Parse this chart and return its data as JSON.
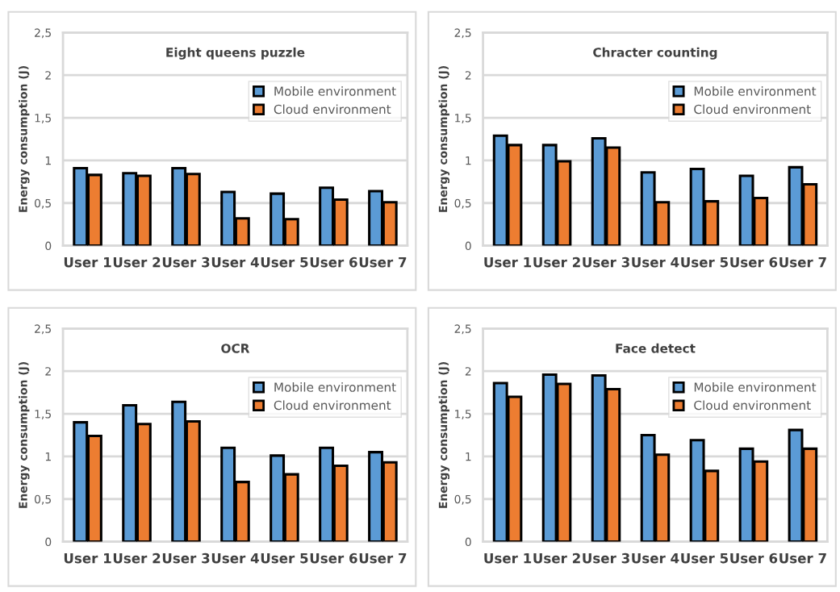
{
  "chart_data": [
    {
      "type": "bar",
      "title": "Eight queens puzzle",
      "ylabel": "Energy consumption (J)",
      "categories": [
        "User 1",
        "User 2",
        "User 3",
        "User 4",
        "User 5",
        "User 6",
        "User 7"
      ],
      "ylim": [
        0,
        2.5
      ],
      "yticks": [
        0,
        {
          "value": 0.5,
          "label": "0,5"
        },
        1,
        {
          "value": 1.5,
          "label": "1,5"
        },
        2,
        {
          "value": 2.5,
          "label": "2,5"
        }
      ],
      "grid": "y",
      "legend": "top right",
      "series": [
        {
          "name": "Mobile environment",
          "color": "#5b9bd5",
          "values": [
            0.91,
            0.85,
            0.91,
            0.63,
            0.61,
            0.68,
            0.64
          ]
        },
        {
          "name": "Cloud environment",
          "color": "#ed7d31",
          "values": [
            0.83,
            0.82,
            0.84,
            0.32,
            0.31,
            0.54,
            0.51
          ]
        }
      ]
    },
    {
      "type": "bar",
      "title": "Chracter counting",
      "ylabel": "Energy consumption (J)",
      "categories": [
        "User 1",
        "User 2",
        "User 3",
        "User 4",
        "User 5",
        "User 6",
        "User 7"
      ],
      "ylim": [
        0,
        2.5
      ],
      "yticks": [
        0,
        {
          "value": 0.5,
          "label": "0,5"
        },
        1,
        {
          "value": 1.5,
          "label": "1,5"
        },
        2,
        {
          "value": 2.5,
          "label": "2,5"
        }
      ],
      "grid": "y",
      "legend": "top right",
      "series": [
        {
          "name": "Mobile environment",
          "color": "#5b9bd5",
          "values": [
            1.29,
            1.18,
            1.26,
            0.86,
            0.9,
            0.82,
            0.92
          ]
        },
        {
          "name": "Cloud environment",
          "color": "#ed7d31",
          "values": [
            1.18,
            0.99,
            1.15,
            0.51,
            0.52,
            0.56,
            0.72
          ]
        }
      ]
    },
    {
      "type": "bar",
      "title": "OCR",
      "ylabel": "Energy consumption (J)",
      "categories": [
        "User 1",
        "User 2",
        "User 3",
        "User 4",
        "User 5",
        "User 6",
        "User 7"
      ],
      "ylim": [
        0,
        2.5
      ],
      "yticks": [
        0,
        {
          "value": 0.5,
          "label": "0,5"
        },
        1,
        {
          "value": 1.5,
          "label": "1,5"
        },
        2,
        {
          "value": 2.5,
          "label": "2,5"
        }
      ],
      "grid": "y",
      "legend": "top right",
      "series": [
        {
          "name": "Mobile environment",
          "color": "#5b9bd5",
          "values": [
            1.4,
            1.6,
            1.64,
            1.1,
            1.01,
            1.1,
            1.05
          ]
        },
        {
          "name": "Cloud environment",
          "color": "#ed7d31",
          "values": [
            1.24,
            1.38,
            1.41,
            0.7,
            0.79,
            0.89,
            0.93
          ]
        }
      ]
    },
    {
      "type": "bar",
      "title": "Face detect",
      "ylabel": "Energy consumption (J)",
      "categories": [
        "User 1",
        "User 2",
        "User 3",
        "User 4",
        "User 5",
        "User 6",
        "User 7"
      ],
      "ylim": [
        0,
        2.5
      ],
      "yticks": [
        0,
        {
          "value": 0.5,
          "label": "0,5"
        },
        1,
        {
          "value": 1.5,
          "label": "1,5"
        },
        2,
        {
          "value": 2.5,
          "label": "2,5"
        }
      ],
      "grid": "y",
      "legend": "top right",
      "series": [
        {
          "name": "Mobile environment",
          "color": "#5b9bd5",
          "values": [
            1.86,
            1.96,
            1.95,
            1.25,
            1.19,
            1.09,
            1.31
          ]
        },
        {
          "name": "Cloud environment",
          "color": "#ed7d31",
          "values": [
            1.7,
            1.85,
            1.79,
            1.02,
            0.83,
            0.94,
            1.09
          ]
        }
      ]
    }
  ]
}
